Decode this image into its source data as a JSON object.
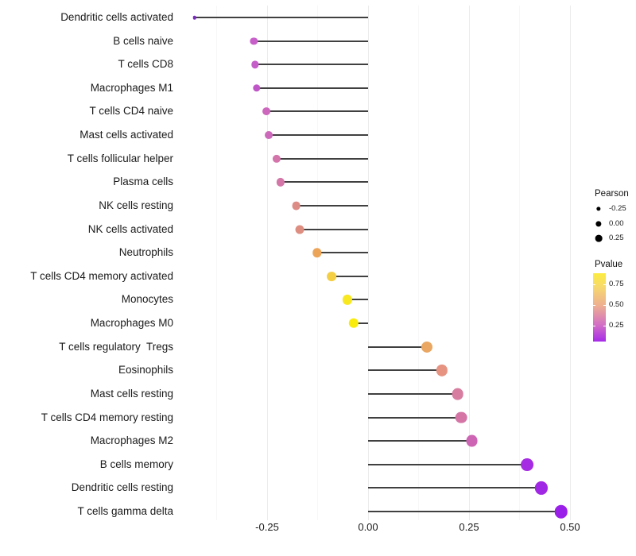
{
  "chart_data": {
    "type": "scatter",
    "variant": "lollipop",
    "orientation": "horizontal",
    "title": "",
    "xlabel": "",
    "ylabel": "",
    "categories": [
      "Dendritic cells activated",
      "B cells naive",
      "T cells CD8",
      "Macrophages M1",
      "T cells CD4 naive",
      "Mast cells activated",
      "T cells follicular helper",
      "Plasma cells",
      "NK cells resting",
      "NK cells activated",
      "Neutrophils",
      "T cells CD4 memory activated",
      "Monocytes",
      "Macrophages M0",
      "T cells regulatory  Tregs",
      "Eosinophils",
      "Mast cells resting",
      "T cells CD4 memory resting",
      "Macrophages M2",
      "B cells memory",
      "Dendritic cells resting",
      "T cells gamma delta"
    ],
    "series": [
      {
        "name": "Pearson",
        "values": [
          -0.43,
          -0.283,
          -0.28,
          -0.276,
          -0.251,
          -0.246,
          -0.226,
          -0.217,
          -0.178,
          -0.169,
          -0.126,
          -0.09,
          -0.052,
          -0.036,
          0.145,
          0.183,
          0.222,
          0.23,
          0.257,
          0.394,
          0.429,
          0.478
        ]
      }
    ],
    "point_colors": [
      "#7b2ac0",
      "#c75fc9",
      "#c55dc9",
      "#c055c8",
      "#cc67bd",
      "#cd69ba",
      "#d374ab",
      "#d477a8",
      "#dd8b85",
      "#de8e80",
      "#eca558",
      "#f4ce43",
      "#f8e822",
      "#f9ec0c",
      "#eaa763",
      "#e79382",
      "#d77da0",
      "#d475a6",
      "#ce64b4",
      "#a52ce2",
      "#a028e4",
      "#9a20e9"
    ],
    "baseline": 0,
    "xlim": [
      -0.475,
      0.525
    ],
    "x_ticks": [
      "-0.25",
      "0.00",
      "0.25",
      "0.50"
    ],
    "x_tick_values": [
      -0.25,
      0,
      0.25,
      0.5
    ],
    "x_minor_values": [
      -0.375,
      -0.125,
      0.125,
      0.375
    ],
    "grid": "vertical major+minor, no horizontal, white background",
    "legend_position": "right"
  },
  "legend": {
    "size": {
      "title": "Pearson",
      "key_color": "#000000",
      "entries": [
        {
          "label": "-0.25",
          "value": -0.25
        },
        {
          "label": "0.00",
          "value": 0
        },
        {
          "label": "0.25",
          "value": 0.25
        }
      ]
    },
    "color": {
      "title": "Pvalue",
      "gradient_top_to_bottom": [
        "#fbec3f",
        "#f7d96e",
        "#eeb090",
        "#d26ec6",
        "#a62be8"
      ],
      "ticks": [
        {
          "label": "0.75",
          "pos": 0.16
        },
        {
          "label": "0.50",
          "pos": 0.465
        },
        {
          "label": "0.25",
          "pos": 0.77
        }
      ]
    }
  },
  "colors": {
    "segment": "#404040",
    "grid_major": "#ececec",
    "grid_minor": "#f7f7f7",
    "text": "#1a1a1a",
    "background": "#ffffff"
  }
}
